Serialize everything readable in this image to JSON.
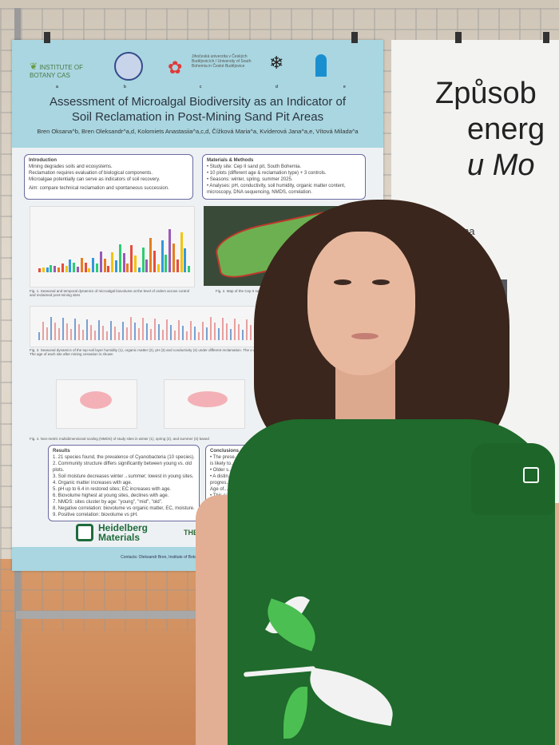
{
  "poster": {
    "logos": [
      "INSTITUTE OF BOTANY CAS",
      "Jihočeská univerzita v Českých Budějovicích / University of South Bohemia in České Budějovice"
    ],
    "logo_letters": [
      "a",
      "b",
      "c",
      "d",
      "e"
    ],
    "title_line1": "Assessment of Microalgal Biodiversity as an Indicator of",
    "title_line2": "Soil Reclamation in Post-Mining Sand Pit Areas",
    "authors": "Bren Oksana^b, Bren Oleksandr^a,d, Kolomiets Anastasiia^a,c,d, Čížková Maria^a, Kvíderová Jana^a,e, Vítová Milada^a",
    "introduction": {
      "heading": "Introduction",
      "lines": [
        "Mining degrades soils and ecosystems.",
        "Reclamation requires evaluation of biological components.",
        "Microalgae potentially can serve as indicators of soil recovery."
      ],
      "aim": "Aim: compare technical reclamation and spontaneous succession."
    },
    "methods": {
      "heading": "Materials & Methods",
      "lines": [
        "• Study site: Cep II sand pit, South Bohemia.",
        "• 10 plots (different age & reclamation type) + 3 controls.",
        "• Seasons: winter, spring, summer 2025.",
        "• Analyses: pH, conductivity, soil humidity, organic matter content, microscopy, DNA sequencing, NMDS, correlation."
      ]
    },
    "fig1_caption": "Fig. 1. Seasonal and temporal dynamics of microalgal biovolume at the level of orders across control and reclaimed post-mining sites",
    "fig2_caption": "Fig. 2. Map of the Cep II sand pit, South Bohemia. Colors - type of reclamation",
    "fig3_caption": "Fig. 3. Seasonal dynamics of the top-soil layer humidity (1), organic matter (2), pH (3) and conductivity (4) under different reclamation. The x-axis indicates the year of mining cessation and the type of restoration. The age of each site after mining cessation is shown",
    "fig4_caption": "Fig. 4. Non-metric multidimensional scaling (NMDS) of study sites in winter (1), spring (2), and summer (3) based",
    "results": {
      "heading": "Results",
      "lines": [
        "1. 21 species found, the prevalence of Cyanobacteria (10 species).",
        "2. Community structure differs significantly between young vs. old plots.",
        "3. Soil moisture decreases winter→summer; lowest in young sites.",
        "4. Organic matter increases with age.",
        "5. pH up to 6.4 in restored sites; EC increases with age.",
        "6. Biovolume highest at young sites, declines with age.",
        "7. NMDS: sites cluster by age: \"young\", \"mid\", \"old\".",
        "8. Negative correlation: biovolume vs organic matter, EC, moisture.",
        "9. Positive correlation: biovolume vs pH."
      ]
    },
    "conclusions": {
      "heading": "Conclusions",
      "lines": [
        "• The prese...",
        "is likely to...",
        "• Older s...",
        "• A distin...",
        "progres...",
        "Age of...",
        "• This ca...",
        "research..."
      ]
    },
    "sponsor1": "Heidelberg Materials",
    "sponsor2": "THE QUARRY LIFE",
    "contact": "Contacts: Oleksandr Bren, Institute of Botany of ImCAS, 2025. Email: oscillatt@gmail..."
  },
  "poster2": {
    "title_line1": "Způsob",
    "title_line2": "energ",
    "title_line3": "u Mo",
    "author": "ězslav Březina"
  },
  "colors": {
    "poster_header": "#a9d6e0",
    "shirt": "#1f6a2c",
    "leaf_green": "#4cbf52"
  }
}
